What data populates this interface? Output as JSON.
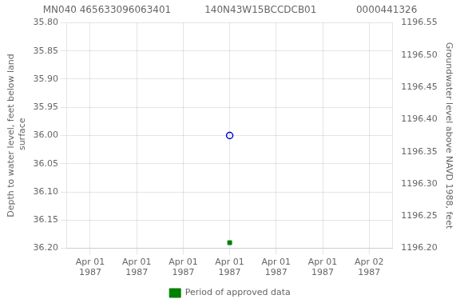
{
  "chart_data": {
    "type": "scatter",
    "title": "MN040 465633096063401           140N43W15BCCDCB01             0000441326",
    "y_label": "Depth to water level, feet below land\n surface",
    "y2_label": "Groundwater level above NAVD 1988, feet",
    "categories": [
      "Apr 01\n1987",
      "Apr 01\n1987",
      "Apr 01\n1987",
      "Apr 01\n1987",
      "Apr 01\n1987",
      "Apr 01\n1987",
      "Apr 02\n1987"
    ],
    "series": [
      {
        "color": "#0000cc",
        "marker": "open_circle",
        "values": [
          null,
          null,
          null,
          36.0,
          null,
          null,
          null
        ]
      },
      {
        "name": "Period of approved data",
        "color": "#008000",
        "marker": "square",
        "values": [
          null,
          null,
          null,
          36.19,
          null,
          null,
          null
        ]
      }
    ],
    "ylim": [
      36.2,
      35.8
    ],
    "yticks": [
      {
        "value": 35.8,
        "label": "35.80"
      },
      35.85,
      {
        "value": 35.9,
        "label": "35.90"
      },
      35.95,
      {
        "value": 36.0,
        "label": "36.00"
      },
      36.05,
      {
        "value": 36.1,
        "label": "36.10"
      },
      36.15,
      {
        "value": 36.2,
        "label": "36.20"
      }
    ],
    "y2lim": [
      1196.2,
      1196.55
    ],
    "y2ticks": [
      1196.55,
      {
        "value": 1196.5,
        "label": "1196.50"
      },
      1196.45,
      {
        "value": 1196.4,
        "label": "1196.40"
      },
      1196.35,
      {
        "value": 1196.3,
        "label": "1196.30"
      },
      1196.25,
      {
        "value": 1196.2,
        "label": "1196.20"
      }
    ],
    "grid": true,
    "legend": "bottom"
  }
}
